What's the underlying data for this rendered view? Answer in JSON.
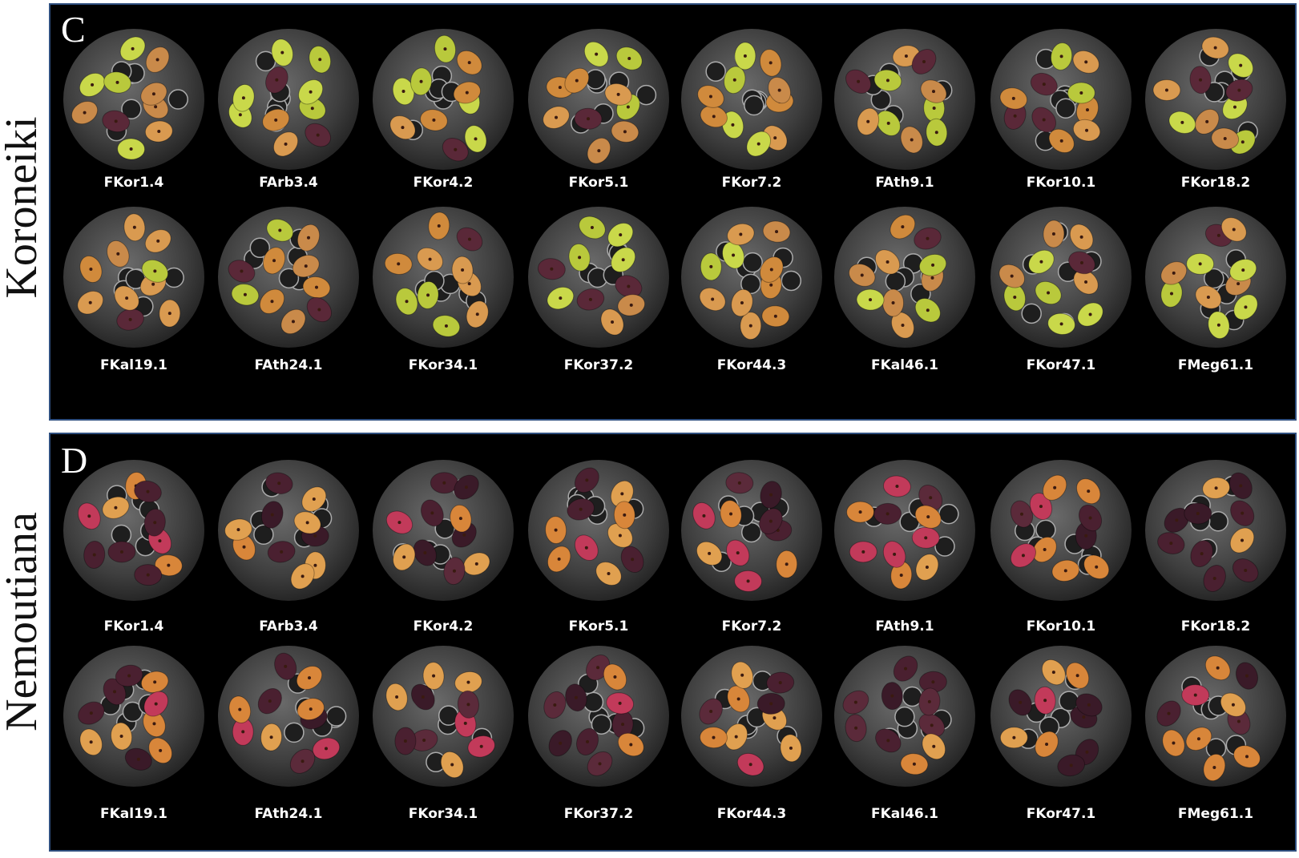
{
  "panels": [
    {
      "letter": "C",
      "variety": "Koroneiki",
      "labels": [
        "FKor1.4",
        "FArb3.4",
        "FKor4.2",
        "FKor5.1",
        "FKor7.2",
        "FAth9.1",
        "FKor10.1",
        "FKor18.2",
        "FKal19.1",
        "FAth24.1",
        "FKor34.1",
        "FKor37.2",
        "FKor44.3",
        "FKal46.1",
        "FKor47.1",
        "FMeg61.1"
      ]
    },
    {
      "letter": "D",
      "variety": "Nemoutiana",
      "labels": [
        "FKor1.4",
        "FArb3.4",
        "FKor4.2",
        "FKor5.1",
        "FKor7.2",
        "FAth9.1",
        "FKor10.1",
        "FKor18.2",
        "FKal19.1",
        "FAth24.1",
        "FKor34.1",
        "FKor37.2",
        "FKor44.3",
        "FKal46.1",
        "FKor47.1",
        "FMeg61.1"
      ]
    }
  ]
}
